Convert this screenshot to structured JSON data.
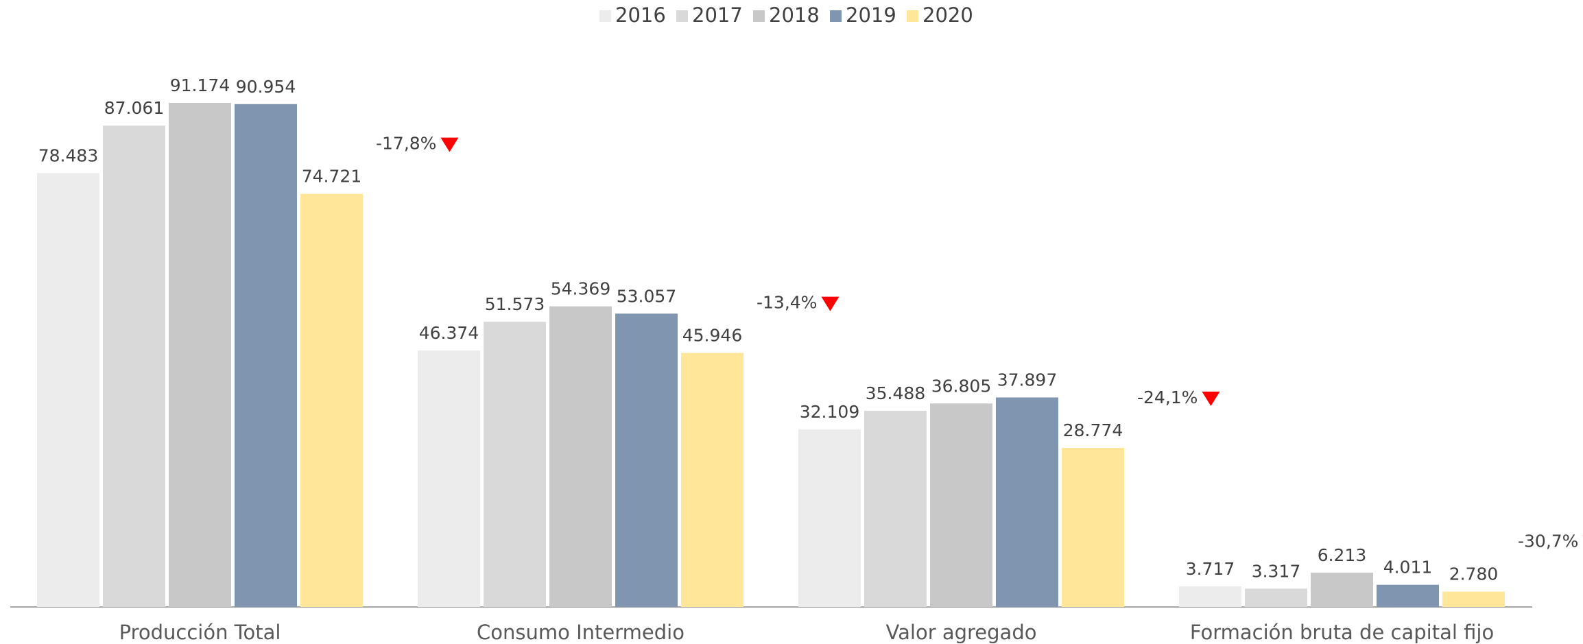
{
  "chart_data": {
    "type": "bar",
    "categories": [
      "Producción Total",
      "Consumo Intermedio",
      "Valor agregado",
      "Formación bruta de capital fijo"
    ],
    "series": [
      {
        "name": "2016",
        "color": "#ececec",
        "values": [
          78483,
          46374,
          32109,
          3717
        ],
        "value_labels": [
          "78.483",
          "46.374",
          "32.109",
          "3.717"
        ]
      },
      {
        "name": "2017",
        "color": "#d9d9d9",
        "values": [
          87061,
          51573,
          35488,
          3317
        ],
        "value_labels": [
          "87.061",
          "51.573",
          "35.488",
          "3.317"
        ]
      },
      {
        "name": "2018",
        "color": "#c8c8c8",
        "values": [
          91174,
          54369,
          36805,
          6213
        ],
        "value_labels": [
          "91.174",
          "54.369",
          "36.805",
          "6.213"
        ]
      },
      {
        "name": "2019",
        "color": "#8096b0",
        "values": [
          90954,
          53057,
          37897,
          4011
        ],
        "value_labels": [
          "90.954",
          "53.057",
          "37.897",
          "4.011"
        ]
      },
      {
        "name": "2020",
        "color": "#ffe699",
        "values": [
          74721,
          45946,
          28774,
          2780
        ],
        "value_labels": [
          "74.721",
          "45.946",
          "28.774",
          "2.780"
        ]
      }
    ],
    "annotations": [
      "-17,8%",
      "-13,4%",
      "-24,1%",
      "-30,7%"
    ],
    "annotation_color": "#ff0000",
    "legend": "top"
  }
}
